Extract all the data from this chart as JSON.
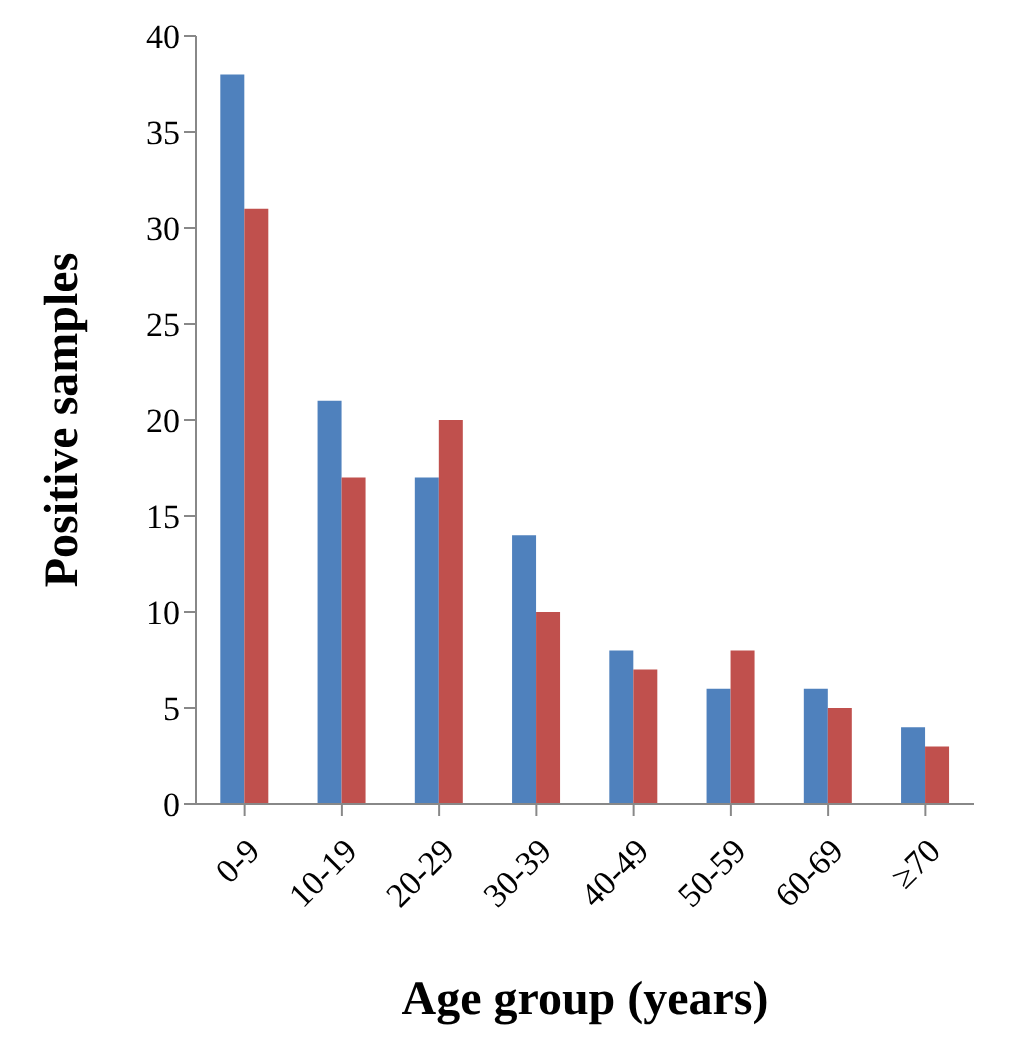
{
  "chart_data": {
    "type": "bar",
    "xlabel": "Age group (years)",
    "ylabel": "Positive samples",
    "categories": [
      "0-9",
      "10-19",
      "20-29",
      "30-39",
      "40-49",
      "50-59",
      "60-69",
      "≥70"
    ],
    "series": [
      {
        "color": "#4f81bd",
        "values": [
          38,
          21,
          17,
          14,
          8,
          6,
          6,
          4
        ]
      },
      {
        "color": "#c0504d",
        "values": [
          31,
          17,
          20,
          10,
          7,
          8,
          5,
          3
        ]
      }
    ],
    "ylim": [
      0,
      40
    ],
    "yticks": [
      0,
      5,
      10,
      15,
      20,
      25,
      30,
      35,
      40
    ],
    "grid": false,
    "legend": false
  }
}
